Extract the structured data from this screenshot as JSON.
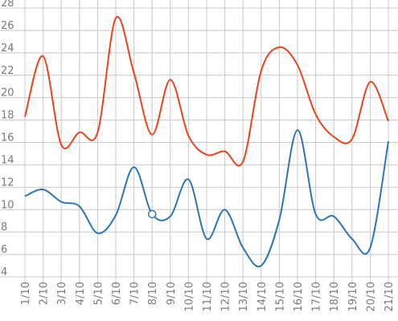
{
  "chart_data": {
    "type": "line",
    "title": "",
    "xlabel": "",
    "ylabel": "",
    "categories": [
      "1/10",
      "2/10",
      "3/10",
      "4/10",
      "5/10",
      "6/10",
      "7/10",
      "8/10",
      "9/10",
      "10/10",
      "11/10",
      "12/10",
      "13/10",
      "14/10",
      "15/10",
      "16/10",
      "17/10",
      "18/10",
      "19/10",
      "20/10",
      "21/10"
    ],
    "ylim": [
      4,
      28
    ],
    "yticks": [
      "4",
      "6",
      "8",
      "10",
      "12",
      "14",
      "16",
      "18",
      "20",
      "22",
      "24",
      "26",
      "28"
    ],
    "grid": true,
    "legend": "none",
    "series": [
      {
        "color": "#e8441e",
        "values": [
          18.3,
          23.7,
          15.8,
          16.9,
          16.9,
          27.1,
          22.2,
          16.7,
          21.6,
          16.6,
          14.9,
          15.2,
          14.3,
          22.4,
          24.5,
          22.9,
          18.5,
          16.5,
          16.3,
          21.4,
          17.9
        ]
      },
      {
        "color": "#2a76b5",
        "values": [
          11.2,
          11.8,
          10.7,
          10.3,
          7.9,
          9.5,
          13.8,
          9.6,
          9.4,
          12.7,
          7.4,
          10.0,
          6.6,
          5.0,
          9.1,
          17.1,
          9.6,
          9.4,
          7.4,
          6.6,
          16.1
        ]
      }
    ],
    "highlight": {
      "series_index": 1,
      "category_index": 7,
      "value": 9.6
    }
  }
}
